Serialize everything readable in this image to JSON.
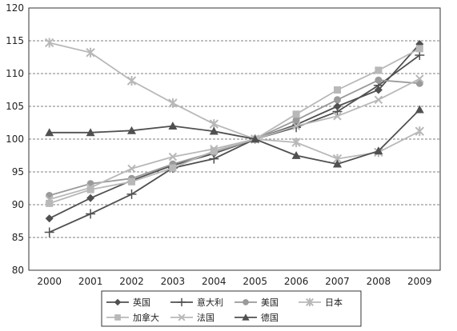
{
  "chart_data": {
    "type": "line",
    "x": [
      "2000",
      "2001",
      "2002",
      "2003",
      "2004",
      "2005",
      "2006",
      "2007",
      "2008",
      "2009"
    ],
    "ylim": [
      80,
      120
    ],
    "yticks": [
      80,
      85,
      90,
      95,
      100,
      105,
      110,
      115,
      120
    ],
    "grid": "horizontal dashed",
    "legend_position": "bottom",
    "series": [
      {
        "name": "英国",
        "marker": "diamond",
        "color": "#505050",
        "values": [
          87.9,
          91.0,
          93.7,
          96.0,
          97.8,
          100.0,
          102.2,
          105.0,
          107.5,
          114.5
        ]
      },
      {
        "name": "意大利",
        "marker": "plus",
        "color": "#505050",
        "values": [
          85.8,
          88.6,
          91.6,
          95.6,
          97.0,
          100.0,
          101.8,
          104.2,
          108.2,
          112.8
        ]
      },
      {
        "name": "美国",
        "marker": "circle",
        "color": "#9a9a9a",
        "values": [
          91.4,
          93.2,
          94.0,
          96.2,
          98.0,
          100.0,
          102.9,
          106.0,
          109.0,
          108.5
        ]
      },
      {
        "name": "日本",
        "marker": "asterisk",
        "color": "#b8b8b8",
        "values": [
          114.7,
          113.2,
          108.9,
          105.5,
          102.3,
          100.0,
          99.5,
          97.0,
          98.0,
          101.2
        ]
      },
      {
        "name": "加拿大",
        "marker": "square",
        "color": "#b8b8b8",
        "values": [
          90.2,
          92.3,
          93.5,
          95.6,
          98.2,
          100.0,
          103.8,
          107.5,
          110.5,
          113.8
        ]
      },
      {
        "name": "法国",
        "marker": "cross",
        "color": "#b8b8b8",
        "values": [
          90.8,
          92.6,
          95.5,
          97.3,
          98.5,
          100.0,
          102.0,
          103.5,
          106.0,
          109.2
        ]
      },
      {
        "name": "德国",
        "marker": "triangle",
        "color": "#505050",
        "values": [
          101.0,
          101.0,
          101.3,
          102.0,
          101.2,
          100.0,
          97.5,
          96.2,
          98.2,
          104.5
        ]
      }
    ]
  }
}
